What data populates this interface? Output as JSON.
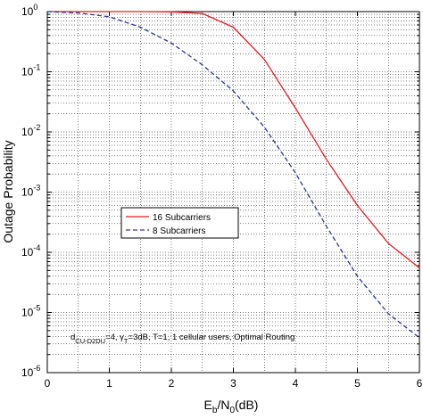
{
  "chart_data": {
    "type": "line",
    "xlabel_main": "E",
    "xlabel_sub1": "b",
    "xlabel_mid": "/N",
    "xlabel_sub2": "0",
    "xlabel_tail": "(dB)",
    "ylabel": "Outage Probability",
    "xlim": [
      0,
      6
    ],
    "ylim": [
      1e-06,
      1
    ],
    "yscale": "log",
    "grid": true,
    "x_ticks": [
      "0",
      "1",
      "2",
      "3",
      "4",
      "5",
      "6"
    ],
    "y_ticks": [
      {
        "base": "10",
        "exp": "0"
      },
      {
        "base": "10",
        "exp": "-1"
      },
      {
        "base": "10",
        "exp": "-2"
      },
      {
        "base": "10",
        "exp": "-3"
      },
      {
        "base": "10",
        "exp": "-4"
      },
      {
        "base": "10",
        "exp": "-5"
      },
      {
        "base": "10",
        "exp": "-6"
      }
    ],
    "series": [
      {
        "name": "16 Subcarriers",
        "color": "#e8191f",
        "style": "solid",
        "x": [
          0,
          0.5,
          1,
          1.5,
          2,
          2.5,
          3,
          3.5,
          4,
          4.5,
          5,
          5.5,
          6
        ],
        "y": [
          1.0,
          1.0,
          1.0,
          1.0,
          0.99,
          0.93,
          0.55,
          0.16,
          0.025,
          0.0035,
          0.0006,
          0.00014,
          5.5e-05
        ]
      },
      {
        "name": "8 Subcarriers",
        "color": "#2d3597",
        "style": "dashed",
        "x": [
          0,
          0.5,
          1,
          1.5,
          2,
          2.5,
          3,
          3.5,
          4,
          4.5,
          5,
          5.5,
          6
        ],
        "y": [
          1.0,
          0.95,
          0.82,
          0.55,
          0.3,
          0.13,
          0.048,
          0.012,
          0.0021,
          0.00027,
          4e-05,
          9.5e-06,
          3.8e-06
        ]
      }
    ],
    "legend_position": "center-left",
    "annotation": {
      "p1": "d",
      "p1_sub": "CU-D2DU",
      "p2": "=4, ",
      "p3": "γ",
      "p3_sub": "T",
      "p4": "=3dB, T=1, 1 cellular users, Optimal Routing"
    }
  }
}
